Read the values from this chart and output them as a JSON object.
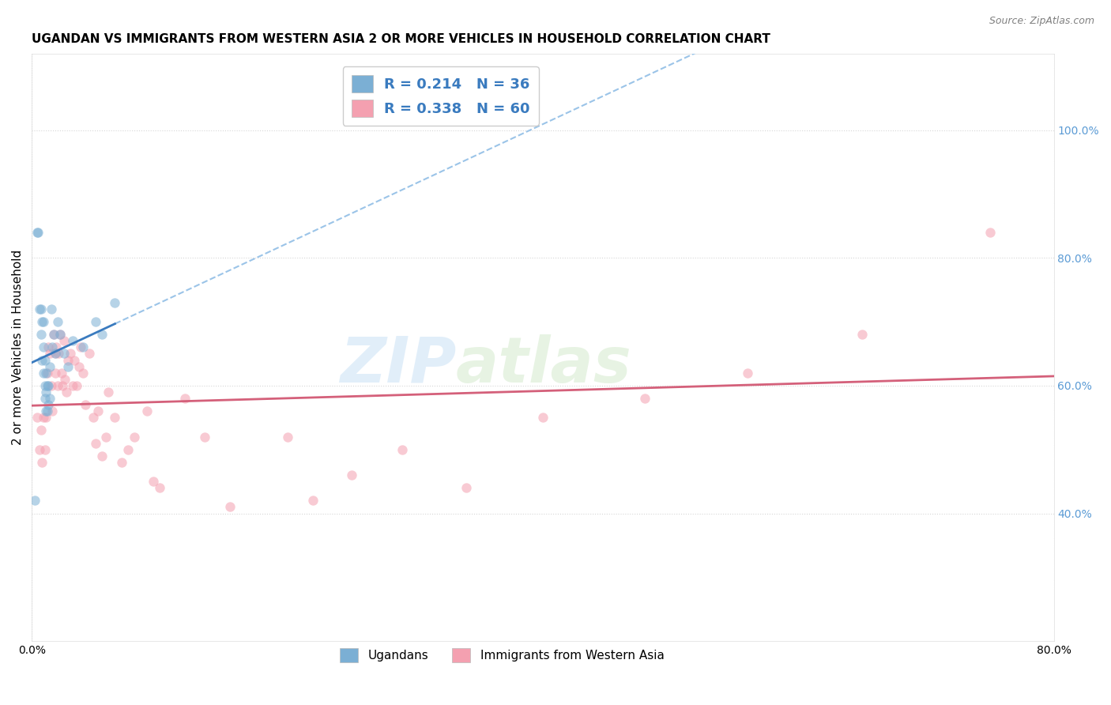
{
  "title": "UGANDAN VS IMMIGRANTS FROM WESTERN ASIA 2 OR MORE VEHICLES IN HOUSEHOLD CORRELATION CHART",
  "source": "Source: ZipAtlas.com",
  "ylabel": "2 or more Vehicles in Household",
  "xlim": [
    0.0,
    0.8
  ],
  "ylim": [
    0.2,
    1.12
  ],
  "yticks": [
    0.4,
    0.6,
    0.8,
    1.0
  ],
  "ytick_labels": [
    "40.0%",
    "60.0%",
    "80.0%",
    "100.0%"
  ],
  "xticks": [
    0.0,
    0.8
  ],
  "xtick_labels": [
    "0.0%",
    "80.0%"
  ],
  "legend_r1": "R = 0.214   N = 36",
  "legend_r2": "R = 0.338   N = 60",
  "ugandan_x": [
    0.002,
    0.004,
    0.005,
    0.006,
    0.007,
    0.007,
    0.008,
    0.008,
    0.009,
    0.009,
    0.009,
    0.01,
    0.01,
    0.01,
    0.011,
    0.011,
    0.011,
    0.012,
    0.012,
    0.013,
    0.013,
    0.014,
    0.014,
    0.015,
    0.016,
    0.017,
    0.018,
    0.02,
    0.022,
    0.025,
    0.028,
    0.032,
    0.04,
    0.05,
    0.055,
    0.065
  ],
  "ugandan_y": [
    0.42,
    0.84,
    0.84,
    0.72,
    0.68,
    0.72,
    0.64,
    0.7,
    0.62,
    0.66,
    0.7,
    0.58,
    0.6,
    0.64,
    0.56,
    0.59,
    0.62,
    0.56,
    0.6,
    0.57,
    0.6,
    0.63,
    0.58,
    0.72,
    0.66,
    0.68,
    0.65,
    0.7,
    0.68,
    0.65,
    0.63,
    0.67,
    0.66,
    0.7,
    0.68,
    0.73
  ],
  "western_asia_x": [
    0.004,
    0.006,
    0.007,
    0.008,
    0.009,
    0.01,
    0.011,
    0.012,
    0.013,
    0.014,
    0.015,
    0.016,
    0.017,
    0.018,
    0.018,
    0.019,
    0.02,
    0.021,
    0.022,
    0.023,
    0.024,
    0.025,
    0.026,
    0.027,
    0.028,
    0.03,
    0.032,
    0.033,
    0.035,
    0.037,
    0.038,
    0.04,
    0.042,
    0.045,
    0.048,
    0.05,
    0.052,
    0.055,
    0.058,
    0.06,
    0.065,
    0.07,
    0.075,
    0.08,
    0.09,
    0.095,
    0.1,
    0.12,
    0.135,
    0.155,
    0.2,
    0.22,
    0.25,
    0.29,
    0.34,
    0.4,
    0.48,
    0.56,
    0.65,
    0.75
  ],
  "western_asia_y": [
    0.55,
    0.5,
    0.53,
    0.48,
    0.55,
    0.5,
    0.55,
    0.62,
    0.66,
    0.65,
    0.6,
    0.56,
    0.68,
    0.65,
    0.62,
    0.66,
    0.6,
    0.65,
    0.68,
    0.62,
    0.6,
    0.67,
    0.61,
    0.59,
    0.64,
    0.65,
    0.6,
    0.64,
    0.6,
    0.63,
    0.66,
    0.62,
    0.57,
    0.65,
    0.55,
    0.51,
    0.56,
    0.49,
    0.52,
    0.59,
    0.55,
    0.48,
    0.5,
    0.52,
    0.56,
    0.45,
    0.44,
    0.58,
    0.52,
    0.41,
    0.52,
    0.42,
    0.46,
    0.5,
    0.44,
    0.55,
    0.58,
    0.62,
    0.68,
    0.84
  ],
  "ugandan_dot_color": "#7bafd4",
  "western_asia_dot_color": "#f4a0b0",
  "ugandan_line_color": "#3a7bbf",
  "western_asia_line_color": "#d4607a",
  "dashed_line_color": "#9bc4e8",
  "dot_size": 80,
  "dot_alpha": 0.55,
  "grid_color": "#cccccc",
  "background_color": "#ffffff",
  "watermark_zip": "ZIP",
  "watermark_atlas": "atlas",
  "title_fontsize": 11,
  "axis_label_fontsize": 11,
  "tick_fontsize": 10,
  "source_fontsize": 9
}
